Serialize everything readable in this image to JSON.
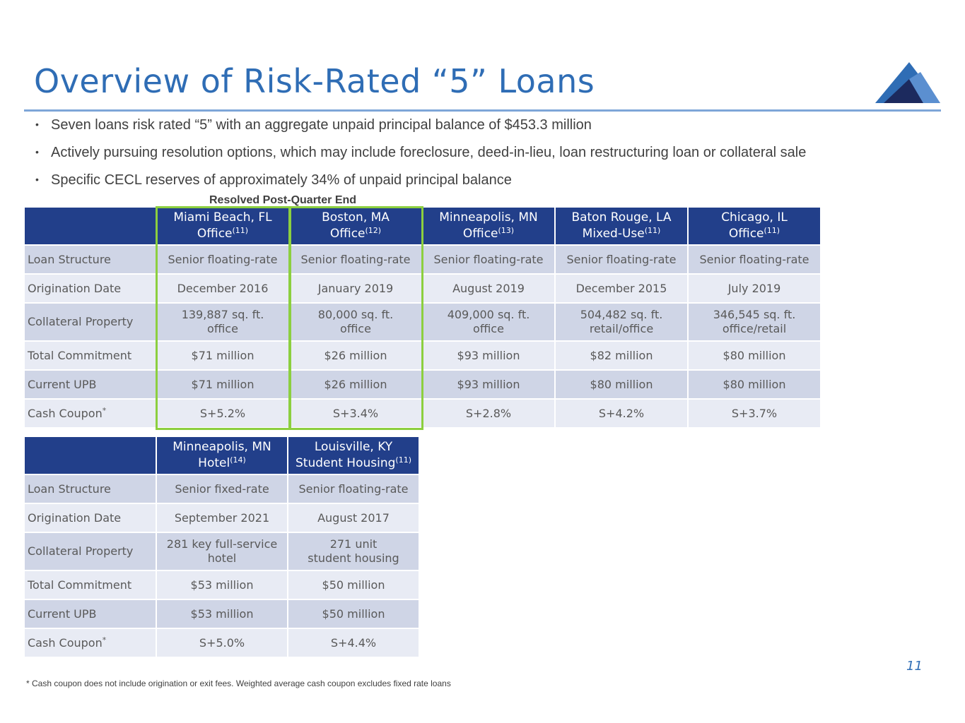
{
  "title": "Overview of Risk-Rated “5” Loans",
  "logo": {
    "icon": "mountain-logo-icon",
    "colors": [
      "#2f6db5",
      "#1c2a5e",
      "#5b8fd0"
    ]
  },
  "bullets": [
    "Seven loans risk rated “5” with an aggregate unpaid principal balance of $453.3 million",
    "Actively pursuing resolution options, which may include foreclosure, deed-in-lieu, loan restructuring loan or collateral sale",
    "Specific CECL reserves of approximately 34% of unpaid principal balance"
  ],
  "resolved_label": "Resolved Post-Quarter End",
  "row_labels": [
    "Loan Structure",
    "Origination Date",
    "Collateral Property",
    "Total Commitment",
    "Current UPB",
    "Cash Coupon"
  ],
  "cash_coupon_mark": "*",
  "table1": {
    "columns": [
      {
        "city": "Miami Beach, FL",
        "type": "Office",
        "note": "(11)"
      },
      {
        "city": "Boston, MA",
        "type": "Office",
        "note": "(12)"
      },
      {
        "city": "Minneapolis, MN",
        "type": "Office",
        "note": "(13)"
      },
      {
        "city": "Baton Rouge, LA",
        "type": "Mixed-Use",
        "note": "(11)"
      },
      {
        "city": "Chicago, IL",
        "type": "Office",
        "note": "(11)"
      }
    ],
    "rows": [
      [
        "Senior floating-rate",
        "Senior floating-rate",
        "Senior floating-rate",
        "Senior floating-rate",
        "Senior floating-rate"
      ],
      [
        "December 2016",
        "January 2019",
        "August 2019",
        "December 2015",
        "July 2019"
      ],
      [
        [
          "139,887 sq. ft.",
          "office"
        ],
        [
          "80,000 sq. ft.",
          "office"
        ],
        [
          "409,000 sq. ft.",
          "office"
        ],
        [
          "504,482 sq. ft.",
          "retail/office"
        ],
        [
          "346,545 sq. ft.",
          "office/retail"
        ]
      ],
      [
        "$71 million",
        "$26 million",
        "$93 million",
        "$82 million",
        "$80 million"
      ],
      [
        "$71 million",
        "$26 million",
        "$93 million",
        "$80 million",
        "$80 million"
      ],
      [
        "S+5.2%",
        "S+3.4%",
        "S+2.8%",
        "S+4.2%",
        "S+3.7%"
      ]
    ]
  },
  "table2": {
    "columns": [
      {
        "city": "Minneapolis, MN",
        "type": "Hotel",
        "note": "(14)"
      },
      {
        "city": "Louisville, KY",
        "type": "Student Housing",
        "note": "(11)"
      }
    ],
    "rows": [
      [
        "Senior fixed-rate",
        "Senior floating-rate"
      ],
      [
        "September 2021",
        "August 2017"
      ],
      [
        [
          "281 key full-service",
          "hotel"
        ],
        [
          "271 unit",
          "student housing"
        ]
      ],
      [
        "$53 million",
        "$50 million"
      ],
      [
        "$53 million",
        "$50 million"
      ],
      [
        "S+5.0%",
        "S+4.4%"
      ]
    ]
  },
  "highlight_color": "#8ccf3f",
  "page_number": "11",
  "footnote": "* Cash coupon does not include origination or exit fees. Weighted average cash coupon excludes fixed rate loans"
}
